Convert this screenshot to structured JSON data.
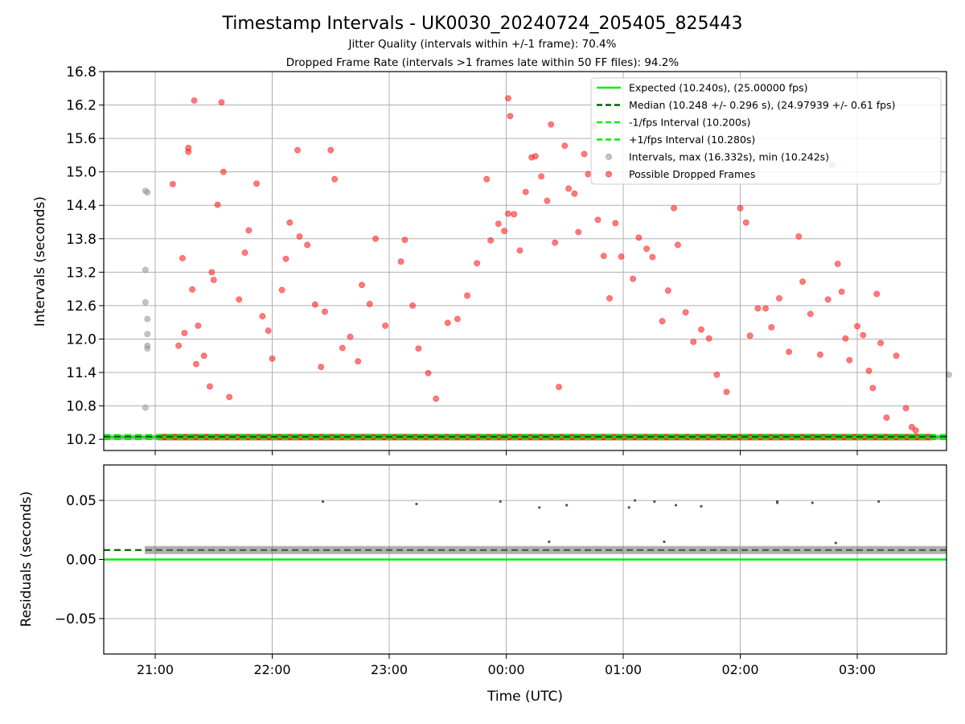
{
  "header": {
    "title": "Timestamp Intervals - UK0030_20240724_205405_825443",
    "subtitle1": "Jitter Quality (intervals within +/-1 frame): 70.4%",
    "subtitle2": "Dropped Frame Rate (intervals >1 frames late within 50 FF files): 94.2%"
  },
  "chart_data": [
    {
      "type": "scatter",
      "ylabel": "Intervals (seconds)",
      "ylim": [
        10.0,
        16.8
      ],
      "yticks": [
        "10.2",
        "10.8",
        "11.4",
        "12.0",
        "12.6",
        "13.2",
        "13.8",
        "14.4",
        "15.0",
        "15.6",
        "16.2",
        "16.8"
      ],
      "grid": true,
      "legend_position": "top-right",
      "legend": [
        {
          "label": "Expected (10.240s), (25.00000 fps)",
          "style": "solid",
          "color": "#00ee00"
        },
        {
          "label": "Median (10.248 +/- 0.296 s), (24.97939 +/- 0.61 fps)",
          "style": "dashed",
          "color": "#006400"
        },
        {
          "label": "-1/fps Interval (10.200s)",
          "style": "dashed",
          "color": "#00ee00"
        },
        {
          "label": "+1/fps Interval (10.280s)",
          "style": "dashed",
          "color": "#00ee00"
        },
        {
          "label": "Intervals, max (16.332s), min (10.242s)",
          "style": "marker",
          "color": "#999999"
        },
        {
          "label": "Possible Dropped Frames",
          "style": "marker",
          "color": "#ff2222"
        }
      ],
      "reference_lines": {
        "expected": 10.24,
        "median": 10.248,
        "minus_1fps": 10.2,
        "plus_1fps": 10.28
      },
      "series": [
        {
          "name": "Intervals, max (16.332s), min (10.242s)",
          "color": "#999999",
          "points": [
            [
              "20:55",
              14.66
            ],
            [
              "20:56",
              14.63
            ],
            [
              "20:55",
              13.24
            ],
            [
              "20:55",
              12.66
            ],
            [
              "20:56",
              12.36
            ],
            [
              "20:56",
              12.09
            ],
            [
              "20:56",
              11.88
            ],
            [
              "20:56",
              11.83
            ],
            [
              "20:55",
              10.77
            ],
            [
              "03:47",
              11.36
            ]
          ]
        },
        {
          "name": "Possible Dropped Frames",
          "color": "#ff2222",
          "points": [
            [
              "21:09",
              14.78
            ],
            [
              "21:17",
              15.36
            ],
            [
              "21:17",
              15.43
            ],
            [
              "21:20",
              16.28
            ],
            [
              "21:34",
              16.25
            ],
            [
              "21:35",
              15.0
            ],
            [
              "21:32",
              14.41
            ],
            [
              "21:14",
              13.45
            ],
            [
              "21:29",
              13.2
            ],
            [
              "21:30",
              13.06
            ],
            [
              "21:19",
              12.89
            ],
            [
              "21:22",
              12.24
            ],
            [
              "21:15",
              12.11
            ],
            [
              "21:12",
              11.88
            ],
            [
              "21:25",
              11.7
            ],
            [
              "21:21",
              11.55
            ],
            [
              "21:28",
              11.15
            ],
            [
              "21:38",
              10.96
            ],
            [
              "21:43",
              12.71
            ],
            [
              "21:46",
              13.55
            ],
            [
              "21:48",
              13.95
            ],
            [
              "21:52",
              14.79
            ],
            [
              "21:55",
              12.41
            ],
            [
              "21:58",
              12.15
            ],
            [
              "22:00",
              11.65
            ],
            [
              "22:05",
              12.88
            ],
            [
              "22:07",
              13.44
            ],
            [
              "22:09",
              14.09
            ],
            [
              "22:13",
              15.39
            ],
            [
              "22:14",
              13.84
            ],
            [
              "22:18",
              13.69
            ],
            [
              "22:22",
              12.62
            ],
            [
              "22:25",
              11.5
            ],
            [
              "22:27",
              12.49
            ],
            [
              "22:30",
              15.39
            ],
            [
              "22:32",
              14.87
            ],
            [
              "22:36",
              11.84
            ],
            [
              "22:40",
              12.04
            ],
            [
              "22:44",
              11.6
            ],
            [
              "22:46",
              12.97
            ],
            [
              "22:50",
              12.63
            ],
            [
              "22:53",
              13.8
            ],
            [
              "22:58",
              12.24
            ],
            [
              "23:06",
              13.39
            ],
            [
              "23:08",
              13.78
            ],
            [
              "23:12",
              12.6
            ],
            [
              "23:15",
              11.83
            ],
            [
              "23:20",
              11.39
            ],
            [
              "23:24",
              10.93
            ],
            [
              "23:30",
              12.29
            ],
            [
              "23:35",
              12.36
            ],
            [
              "23:40",
              12.78
            ],
            [
              "23:45",
              13.36
            ],
            [
              "23:50",
              14.87
            ],
            [
              "23:52",
              13.77
            ],
            [
              "23:56",
              14.07
            ],
            [
              "23:59",
              13.94
            ],
            [
              "00:01",
              14.25
            ],
            [
              "00:01",
              16.32
            ],
            [
              "00:02",
              16.0
            ],
            [
              "00:04",
              14.24
            ],
            [
              "00:07",
              13.59
            ],
            [
              "00:10",
              14.64
            ],
            [
              "00:13",
              15.26
            ],
            [
              "00:15",
              15.28
            ],
            [
              "00:18",
              14.92
            ],
            [
              "00:21",
              14.48
            ],
            [
              "00:23",
              15.85
            ],
            [
              "00:25",
              13.73
            ],
            [
              "00:27",
              11.14
            ],
            [
              "00:30",
              15.47
            ],
            [
              "00:32",
              14.7
            ],
            [
              "00:35",
              14.61
            ],
            [
              "00:37",
              13.92
            ],
            [
              "00:40",
              15.32
            ],
            [
              "00:42",
              14.96
            ],
            [
              "00:45",
              15.82
            ],
            [
              "00:47",
              14.14
            ],
            [
              "00:50",
              13.49
            ],
            [
              "00:53",
              12.73
            ],
            [
              "00:56",
              14.08
            ],
            [
              "00:59",
              13.48
            ],
            [
              "01:05",
              13.08
            ],
            [
              "01:08",
              13.82
            ],
            [
              "01:12",
              13.62
            ],
            [
              "01:15",
              13.47
            ],
            [
              "01:20",
              12.32
            ],
            [
              "01:23",
              12.87
            ],
            [
              "01:26",
              14.35
            ],
            [
              "01:28",
              13.69
            ],
            [
              "01:32",
              12.48
            ],
            [
              "01:36",
              11.95
            ],
            [
              "01:40",
              12.17
            ],
            [
              "01:44",
              12.01
            ],
            [
              "01:48",
              11.36
            ],
            [
              "01:53",
              11.05
            ],
            [
              "02:00",
              14.35
            ],
            [
              "02:03",
              14.09
            ],
            [
              "02:05",
              12.06
            ],
            [
              "02:09",
              12.55
            ],
            [
              "02:13",
              12.55
            ],
            [
              "02:16",
              12.21
            ],
            [
              "02:20",
              12.73
            ],
            [
              "02:25",
              11.77
            ],
            [
              "02:30",
              13.84
            ],
            [
              "02:32",
              13.03
            ],
            [
              "02:36",
              12.45
            ],
            [
              "02:41",
              11.72
            ],
            [
              "02:45",
              12.71
            ],
            [
              "02:47",
              15.13
            ],
            [
              "02:50",
              13.35
            ],
            [
              "02:52",
              12.85
            ],
            [
              "02:54",
              12.01
            ],
            [
              "02:56",
              11.62
            ],
            [
              "03:00",
              12.23
            ],
            [
              "03:03",
              12.07
            ],
            [
              "03:06",
              11.43
            ],
            [
              "03:08",
              11.12
            ],
            [
              "03:10",
              12.81
            ],
            [
              "03:12",
              11.93
            ],
            [
              "03:15",
              10.59
            ],
            [
              "03:20",
              11.7
            ],
            [
              "03:25",
              10.76
            ],
            [
              "03:28",
              10.42
            ],
            [
              "03:30",
              10.36
            ]
          ]
        }
      ]
    },
    {
      "type": "scatter",
      "xlabel": "Time (UTC)",
      "ylabel": "Residuals (seconds)",
      "ylim": [
        -0.08,
        0.08
      ],
      "yticks": [
        "−0.05",
        "0.00",
        "0.05"
      ],
      "xticks": [
        "21:00",
        "22:00",
        "23:00",
        "00:00",
        "01:00",
        "02:00",
        "03:00"
      ],
      "grid": true,
      "reference_lines": {
        "zero": 0.0,
        "median": 0.008
      },
      "series": [
        {
          "name": "",
          "color": "#555555",
          "points": [
            [
              "22:26",
              0.049
            ],
            [
              "23:14",
              0.047
            ],
            [
              "23:57",
              0.049
            ],
            [
              "00:17",
              0.044
            ],
            [
              "00:31",
              0.046
            ],
            [
              "01:03",
              0.044
            ],
            [
              "01:06",
              0.05
            ],
            [
              "01:16",
              0.049
            ],
            [
              "01:27",
              0.046
            ],
            [
              "01:40",
              0.045
            ],
            [
              "02:19",
              0.049
            ],
            [
              "02:19",
              0.048
            ],
            [
              "02:37",
              0.048
            ],
            [
              "03:11",
              0.049
            ],
            [
              "00:22",
              0.015
            ],
            [
              "01:21",
              0.015
            ],
            [
              "02:49",
              0.014
            ]
          ]
        }
      ]
    }
  ]
}
